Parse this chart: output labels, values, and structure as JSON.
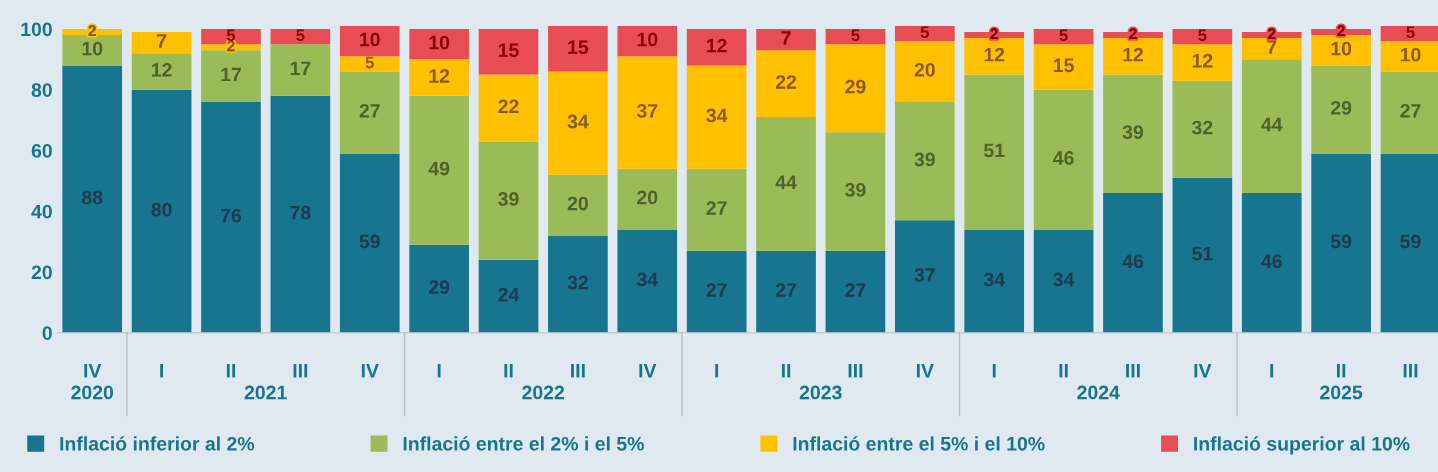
{
  "chart_data": {
    "type": "bar",
    "stacked": true,
    "data_labels": true,
    "grid": false,
    "legend": "bottom",
    "categories": [
      "IV",
      "I",
      "II",
      "III",
      "IV",
      "I",
      "II",
      "III",
      "IV",
      "I",
      "II",
      "III",
      "IV",
      "I",
      "II",
      "III",
      "IV",
      "I",
      "II",
      "III"
    ],
    "ylim": [
      0,
      101
    ],
    "yticks": [
      0,
      20,
      40,
      60,
      80,
      100
    ],
    "annotations": [
      "2020",
      "2021",
      "2022",
      "2023",
      "2024",
      "2025"
    ],
    "series": [
      {
        "name": "Inflació inferior al 2%",
        "color": "#17758f",
        "values": [
          88,
          80,
          76,
          78,
          59,
          29,
          24,
          32,
          34,
          27,
          27,
          27,
          37,
          34,
          34,
          46,
          51,
          46,
          59,
          59
        ]
      },
      {
        "name": "Inflació entre el 2% i el 5%",
        "color": "#9bbb59",
        "values": [
          10,
          12,
          17,
          17,
          27,
          49,
          39,
          20,
          20,
          27,
          44,
          39,
          39,
          51,
          46,
          39,
          32,
          44,
          29,
          27
        ]
      },
      {
        "name": "Inflació entre el 5% i el 10%",
        "color": "#ffc000",
        "values": [
          2,
          7,
          2,
          null,
          5,
          12,
          22,
          34,
          37,
          34,
          22,
          29,
          20,
          12,
          15,
          12,
          12,
          7,
          10,
          10
        ]
      },
      {
        "name": "Inflació superior al 10%",
        "color": "#e84c55",
        "values": [
          null,
          null,
          5,
          5,
          10,
          10,
          15,
          15,
          10,
          12,
          7,
          5,
          5,
          2,
          5,
          2,
          5,
          2,
          2,
          5
        ]
      }
    ]
  }
}
